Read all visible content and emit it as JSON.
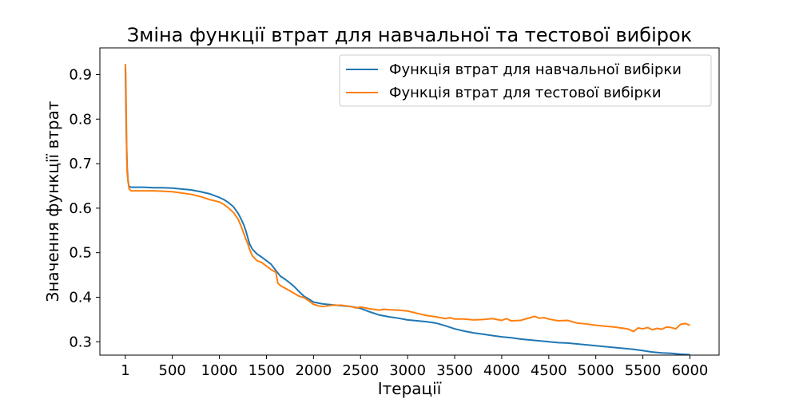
{
  "chart_data": {
    "type": "line",
    "title": "Зміна функції втрат для навчальної та тестової вибірок",
    "xlabel": "Ітерації",
    "ylabel": "Значення функції втрат",
    "xlim": [
      -270,
      6310
    ],
    "ylim": [
      0.27,
      0.96
    ],
    "xticks": [
      1,
      500,
      1000,
      1500,
      2000,
      2500,
      3000,
      3500,
      4000,
      4500,
      5000,
      5500,
      6000
    ],
    "yticks": [
      0.3,
      0.4,
      0.5,
      0.6,
      0.7,
      0.8,
      0.9
    ],
    "ytick_labels": [
      "0.3",
      "0.4",
      "0.5",
      "0.6",
      "0.7",
      "0.8",
      "0.9"
    ],
    "grid": false,
    "legend_position": "top-right",
    "series": [
      {
        "name": "Функція втрат для навчальної вибірки",
        "color": "#1f77b4",
        "x": [
          1,
          5,
          10,
          20,
          30,
          40,
          60,
          100,
          200,
          300,
          400,
          500,
          600,
          700,
          800,
          900,
          1000,
          1050,
          1100,
          1150,
          1200,
          1230,
          1260,
          1280,
          1300,
          1320,
          1350,
          1400,
          1450,
          1500,
          1550,
          1600,
          1650,
          1700,
          1750,
          1800,
          1850,
          1900,
          1950,
          2000,
          2100,
          2200,
          2300,
          2400,
          2500,
          2600,
          2700,
          2800,
          2900,
          3000,
          3100,
          3200,
          3300,
          3400,
          3500,
          3600,
          3700,
          3800,
          3900,
          4000,
          4100,
          4200,
          4300,
          4400,
          4500,
          4600,
          4700,
          4800,
          4900,
          5000,
          5100,
          5200,
          5300,
          5400,
          5500,
          5600,
          5700,
          5800,
          5900,
          6000
        ],
        "values": [
          0.915,
          0.86,
          0.78,
          0.69,
          0.66,
          0.649,
          0.647,
          0.647,
          0.647,
          0.646,
          0.646,
          0.645,
          0.643,
          0.641,
          0.637,
          0.632,
          0.624,
          0.619,
          0.612,
          0.603,
          0.588,
          0.576,
          0.562,
          0.55,
          0.535,
          0.52,
          0.508,
          0.497,
          0.49,
          0.482,
          0.474,
          0.46,
          0.447,
          0.44,
          0.432,
          0.423,
          0.412,
          0.402,
          0.396,
          0.389,
          0.385,
          0.383,
          0.381,
          0.379,
          0.375,
          0.367,
          0.36,
          0.356,
          0.353,
          0.349,
          0.347,
          0.345,
          0.342,
          0.336,
          0.329,
          0.324,
          0.32,
          0.317,
          0.314,
          0.311,
          0.309,
          0.306,
          0.304,
          0.302,
          0.3,
          0.298,
          0.297,
          0.295,
          0.293,
          0.291,
          0.289,
          0.287,
          0.285,
          0.283,
          0.28,
          0.277,
          0.275,
          0.274,
          0.272,
          0.271
        ]
      },
      {
        "name": "Функція втрат для тестової вибірки",
        "color": "#ff7f0e",
        "x": [
          1,
          5,
          10,
          15,
          20,
          30,
          40,
          60,
          100,
          200,
          300,
          400,
          500,
          600,
          700,
          800,
          900,
          1000,
          1050,
          1100,
          1150,
          1200,
          1230,
          1260,
          1280,
          1300,
          1320,
          1350,
          1400,
          1450,
          1500,
          1550,
          1600,
          1620,
          1650,
          1700,
          1750,
          1800,
          1850,
          1900,
          1950,
          2000,
          2050,
          2100,
          2200,
          2300,
          2400,
          2450,
          2500,
          2600,
          2700,
          2750,
          2800,
          2900,
          3000,
          3100,
          3200,
          3300,
          3400,
          3450,
          3500,
          3600,
          3700,
          3800,
          3900,
          4000,
          4050,
          4100,
          4200,
          4300,
          4350,
          4400,
          4450,
          4500,
          4600,
          4700,
          4800,
          4900,
          5000,
          5100,
          5200,
          5300,
          5350,
          5400,
          5450,
          5500,
          5550,
          5600,
          5650,
          5700,
          5750,
          5800,
          5850,
          5900,
          5950,
          6000
        ],
        "values": [
          0.924,
          0.9,
          0.82,
          0.72,
          0.68,
          0.66,
          0.644,
          0.639,
          0.639,
          0.639,
          0.639,
          0.638,
          0.637,
          0.634,
          0.631,
          0.626,
          0.619,
          0.614,
          0.608,
          0.6,
          0.59,
          0.575,
          0.56,
          0.543,
          0.531,
          0.521,
          0.508,
          0.493,
          0.482,
          0.478,
          0.47,
          0.462,
          0.456,
          0.432,
          0.426,
          0.42,
          0.414,
          0.408,
          0.402,
          0.399,
          0.392,
          0.384,
          0.381,
          0.379,
          0.382,
          0.382,
          0.379,
          0.376,
          0.378,
          0.374,
          0.371,
          0.373,
          0.372,
          0.371,
          0.369,
          0.364,
          0.359,
          0.356,
          0.352,
          0.354,
          0.351,
          0.351,
          0.349,
          0.35,
          0.352,
          0.348,
          0.352,
          0.347,
          0.348,
          0.354,
          0.357,
          0.353,
          0.354,
          0.351,
          0.347,
          0.348,
          0.342,
          0.34,
          0.337,
          0.335,
          0.333,
          0.33,
          0.328,
          0.323,
          0.331,
          0.329,
          0.332,
          0.327,
          0.33,
          0.328,
          0.333,
          0.332,
          0.329,
          0.339,
          0.341,
          0.337
        ]
      }
    ]
  }
}
